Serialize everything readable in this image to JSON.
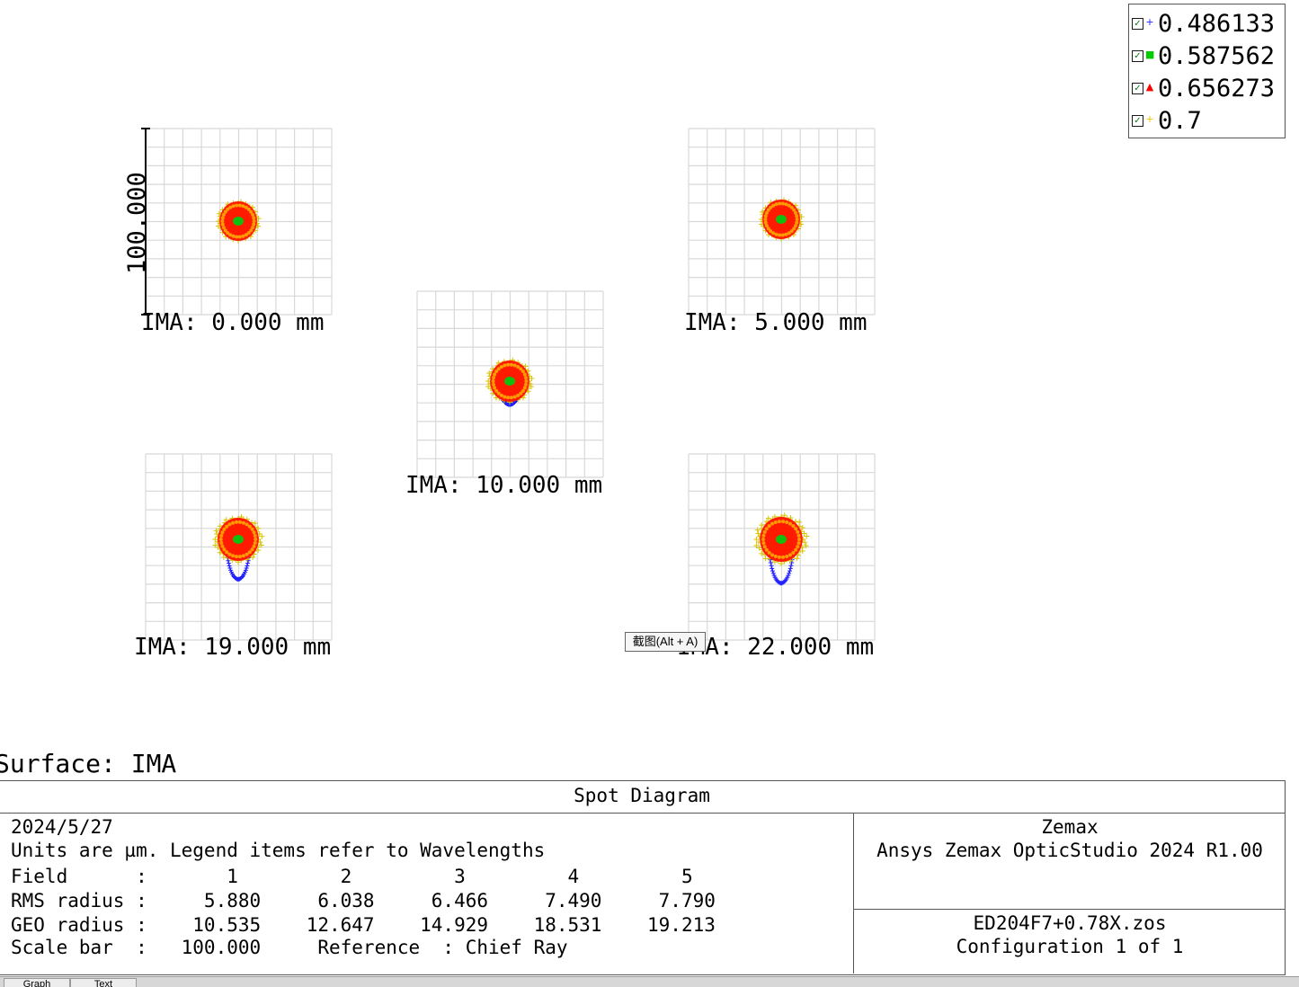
{
  "legend": {
    "items": [
      {
        "label": "0.486133",
        "color": "#1f1fff",
        "marker": "+",
        "checked": true
      },
      {
        "label": "0.587562",
        "color": "#00cc00",
        "marker": "■",
        "checked": true
      },
      {
        "label": "0.656273",
        "color": "#ff0000",
        "marker": "▲",
        "checked": true
      },
      {
        "label": "0.7",
        "color": "#e8c800",
        "marker": "+",
        "checked": true
      }
    ]
  },
  "plot": {
    "scale_bar_label": "100.000",
    "fields": [
      {
        "label": "IMA: 0.000 mm"
      },
      {
        "label": "IMA: 5.000 mm"
      },
      {
        "label": "IMA: 10.000 mm"
      },
      {
        "label": "IMA: 19.000 mm"
      },
      {
        "label": "IMA: 22.000 mm"
      }
    ]
  },
  "surface_label": "Surface: IMA",
  "info": {
    "title": "Spot Diagram",
    "date": "2024/5/27",
    "units_line": "Units are µm. Legend items refer to Wavelengths",
    "field_row": "Field      :       1         2         3         4         5",
    "rms_row": "RMS radius :     5.880     6.038     6.466     7.490     7.790",
    "geo_row": "GEO radius :    10.535    12.647    14.929    18.531    19.213",
    "scale_row": "Scale bar  :   100.000     Reference  : Chief Ray",
    "company": "Zemax",
    "product": "Ansys Zemax OpticStudio 2024 R1.00",
    "file": "ED204F7+0.78X.zos",
    "config": "Configuration 1 of 1"
  },
  "tooltip": "截图(Alt + A)",
  "tabs": [
    {
      "label": "Graph"
    },
    {
      "label": "Text"
    }
  ]
}
